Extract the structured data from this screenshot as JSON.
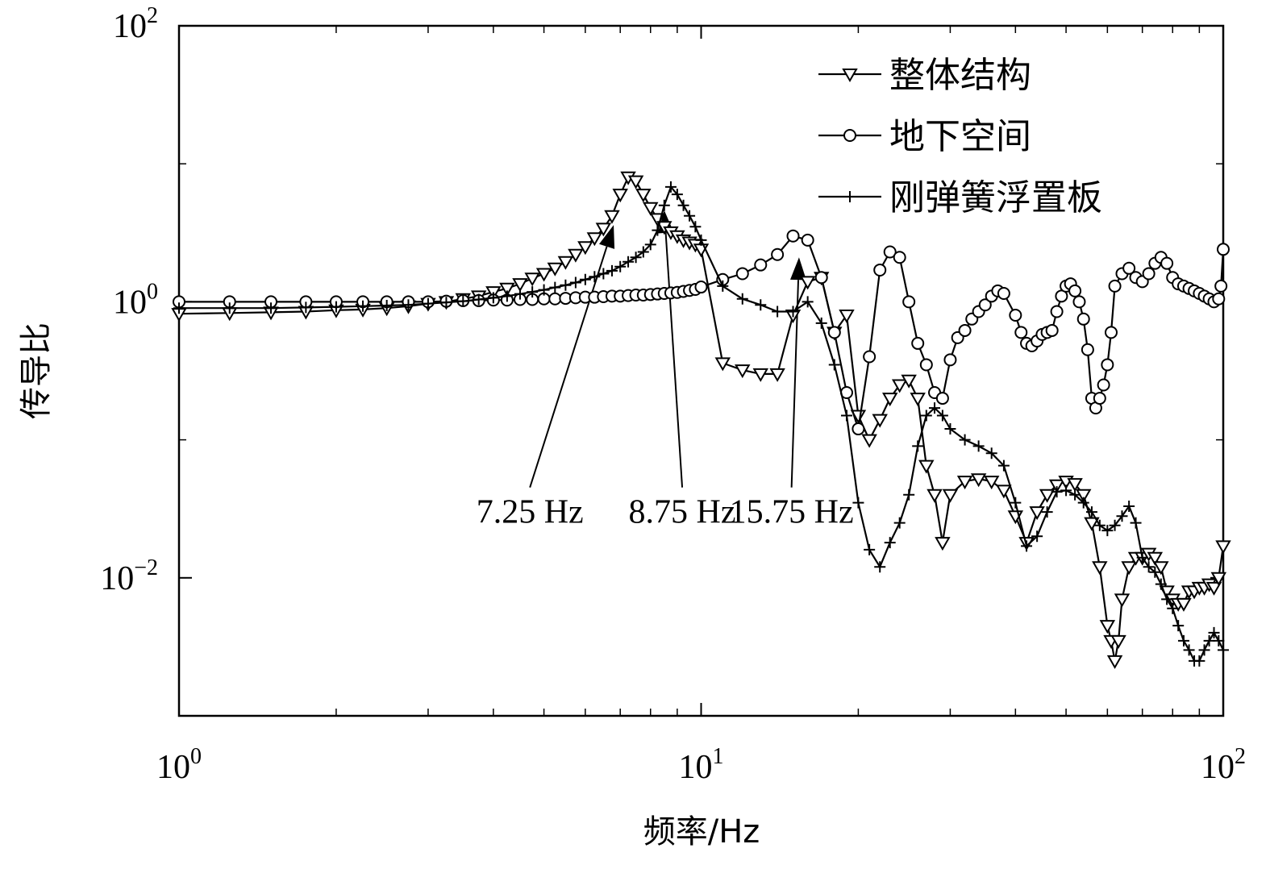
{
  "chart_data": {
    "type": "line",
    "title": "",
    "xlabel": "频率/Hz",
    "ylabel": "传导比",
    "xscale": "log",
    "yscale": "log",
    "xlim": [
      1,
      100
    ],
    "ylim": [
      0.001,
      100
    ],
    "x_ticks": [
      {
        "value": 1,
        "base": "10",
        "exp": "0"
      },
      {
        "value": 10,
        "base": "10",
        "exp": "1"
      },
      {
        "value": 100,
        "base": "10",
        "exp": "2"
      }
    ],
    "y_ticks": [
      {
        "value": 0.01,
        "base": "10",
        "exp": "−2"
      },
      {
        "value": 1,
        "base": "10",
        "exp": "0"
      },
      {
        "value": 100,
        "base": "10",
        "exp": "2"
      }
    ],
    "grid": false,
    "legend_position": "top-right",
    "colors": {
      "line": "#000000",
      "background": "#ffffff"
    },
    "series": [
      {
        "name": "整体结构",
        "marker": "triangle-down",
        "points": [
          [
            1.0,
            0.82
          ],
          [
            1.25,
            0.83
          ],
          [
            1.5,
            0.84
          ],
          [
            1.75,
            0.85
          ],
          [
            2.0,
            0.87
          ],
          [
            2.25,
            0.88
          ],
          [
            2.5,
            0.9
          ],
          [
            2.75,
            0.93
          ],
          [
            3.0,
            0.97
          ],
          [
            3.25,
            1.0
          ],
          [
            3.5,
            1.05
          ],
          [
            3.75,
            1.1
          ],
          [
            4.0,
            1.18
          ],
          [
            4.25,
            1.25
          ],
          [
            4.5,
            1.35
          ],
          [
            4.75,
            1.48
          ],
          [
            5.0,
            1.6
          ],
          [
            5.25,
            1.75
          ],
          [
            5.5,
            1.95
          ],
          [
            5.75,
            2.2
          ],
          [
            6.0,
            2.5
          ],
          [
            6.25,
            2.9
          ],
          [
            6.5,
            3.4
          ],
          [
            6.75,
            4.2
          ],
          [
            7.0,
            6.0
          ],
          [
            7.25,
            8.0
          ],
          [
            7.5,
            7.5
          ],
          [
            7.75,
            6.0
          ],
          [
            8.0,
            4.8
          ],
          [
            8.25,
            4.0
          ],
          [
            8.5,
            3.5
          ],
          [
            8.75,
            3.2
          ],
          [
            9.0,
            3.0
          ],
          [
            9.25,
            2.8
          ],
          [
            9.5,
            2.7
          ],
          [
            9.75,
            2.6
          ],
          [
            10.0,
            2.4
          ],
          [
            11.0,
            0.36
          ],
          [
            12.0,
            0.32
          ],
          [
            13.0,
            0.3
          ],
          [
            14.0,
            0.3
          ],
          [
            15.0,
            0.8
          ],
          [
            16.0,
            1.4
          ],
          [
            17.0,
            1.5
          ],
          [
            18.0,
            0.6
          ],
          [
            19.0,
            0.8
          ],
          [
            20.0,
            0.15
          ],
          [
            21.0,
            0.1
          ],
          [
            22.0,
            0.14
          ],
          [
            23.0,
            0.2
          ],
          [
            24.0,
            0.25
          ],
          [
            25.0,
            0.27
          ],
          [
            26.0,
            0.2
          ],
          [
            27.0,
            0.065
          ],
          [
            28.0,
            0.04
          ],
          [
            29.0,
            0.018
          ],
          [
            30.0,
            0.04
          ],
          [
            32.0,
            0.05
          ],
          [
            34.0,
            0.052
          ],
          [
            36.0,
            0.05
          ],
          [
            38.0,
            0.043
          ],
          [
            40.0,
            0.028
          ],
          [
            42.0,
            0.018
          ],
          [
            44.0,
            0.03
          ],
          [
            46.0,
            0.04
          ],
          [
            48.0,
            0.047
          ],
          [
            50.0,
            0.05
          ],
          [
            52.0,
            0.048
          ],
          [
            54.0,
            0.04
          ],
          [
            56.0,
            0.025
          ],
          [
            58.0,
            0.012
          ],
          [
            60.0,
            0.0045
          ],
          [
            61.0,
            0.0035
          ],
          [
            62.0,
            0.0025
          ],
          [
            63.0,
            0.0035
          ],
          [
            64.0,
            0.007
          ],
          [
            66.0,
            0.012
          ],
          [
            68.0,
            0.014
          ],
          [
            70.0,
            0.014
          ],
          [
            72.0,
            0.015
          ],
          [
            74.0,
            0.014
          ],
          [
            76.0,
            0.012
          ],
          [
            78.0,
            0.008
          ],
          [
            80.0,
            0.007
          ],
          [
            82.0,
            0.0065
          ],
          [
            84.0,
            0.0065
          ],
          [
            86.0,
            0.008
          ],
          [
            88.0,
            0.008
          ],
          [
            90.0,
            0.0085
          ],
          [
            92.0,
            0.0085
          ],
          [
            94.0,
            0.009
          ],
          [
            96.0,
            0.0085
          ],
          [
            98.0,
            0.01
          ],
          [
            100.0,
            0.017
          ]
        ]
      },
      {
        "name": "地下空间",
        "marker": "circle",
        "points": [
          [
            1.0,
            1.0
          ],
          [
            1.25,
            1.0
          ],
          [
            1.5,
            1.0
          ],
          [
            1.75,
            1.0
          ],
          [
            2.0,
            1.0
          ],
          [
            2.25,
            1.0
          ],
          [
            2.5,
            1.0
          ],
          [
            2.75,
            1.0
          ],
          [
            3.0,
            1.0
          ],
          [
            3.25,
            1.01
          ],
          [
            3.5,
            1.02
          ],
          [
            3.75,
            1.02
          ],
          [
            4.0,
            1.03
          ],
          [
            4.25,
            1.03
          ],
          [
            4.5,
            1.04
          ],
          [
            4.75,
            1.04
          ],
          [
            5.0,
            1.05
          ],
          [
            5.25,
            1.05
          ],
          [
            5.5,
            1.06
          ],
          [
            5.75,
            1.07
          ],
          [
            6.0,
            1.08
          ],
          [
            6.25,
            1.08
          ],
          [
            6.5,
            1.09
          ],
          [
            6.75,
            1.1
          ],
          [
            7.0,
            1.1
          ],
          [
            7.25,
            1.11
          ],
          [
            7.5,
            1.12
          ],
          [
            7.75,
            1.12
          ],
          [
            8.0,
            1.13
          ],
          [
            8.25,
            1.14
          ],
          [
            8.5,
            1.15
          ],
          [
            8.75,
            1.16
          ],
          [
            9.0,
            1.17
          ],
          [
            9.25,
            1.19
          ],
          [
            9.5,
            1.21
          ],
          [
            9.75,
            1.23
          ],
          [
            10.0,
            1.28
          ],
          [
            11.0,
            1.45
          ],
          [
            12.0,
            1.6
          ],
          [
            13.0,
            1.85
          ],
          [
            14.0,
            2.2
          ],
          [
            15.0,
            3.0
          ],
          [
            16.0,
            2.8
          ],
          [
            17.0,
            1.5
          ],
          [
            18.0,
            0.6
          ],
          [
            19.0,
            0.22
          ],
          [
            20.0,
            0.12
          ],
          [
            21.0,
            0.4
          ],
          [
            22.0,
            1.7
          ],
          [
            23.0,
            2.3
          ],
          [
            24.0,
            2.1
          ],
          [
            25.0,
            1.0
          ],
          [
            26.0,
            0.5
          ],
          [
            27.0,
            0.35
          ],
          [
            28.0,
            0.22
          ],
          [
            29.0,
            0.2
          ],
          [
            30.0,
            0.38
          ],
          [
            31.0,
            0.55
          ],
          [
            32.0,
            0.62
          ],
          [
            33.0,
            0.75
          ],
          [
            34.0,
            0.85
          ],
          [
            35.0,
            0.95
          ],
          [
            36.0,
            1.1
          ],
          [
            37.0,
            1.2
          ],
          [
            38.0,
            1.15
          ],
          [
            40.0,
            0.8
          ],
          [
            41.0,
            0.6
          ],
          [
            42.0,
            0.5
          ],
          [
            43.0,
            0.48
          ],
          [
            44.0,
            0.52
          ],
          [
            45.0,
            0.58
          ],
          [
            46.0,
            0.6
          ],
          [
            47.0,
            0.62
          ],
          [
            48.0,
            0.85
          ],
          [
            49.0,
            1.1
          ],
          [
            50.0,
            1.3
          ],
          [
            51.0,
            1.35
          ],
          [
            52.0,
            1.2
          ],
          [
            53.0,
            1.0
          ],
          [
            54.0,
            0.75
          ],
          [
            55.0,
            0.45
          ],
          [
            56.0,
            0.2
          ],
          [
            57.0,
            0.17
          ],
          [
            58.0,
            0.2
          ],
          [
            59.0,
            0.25
          ],
          [
            60.0,
            0.35
          ],
          [
            61.0,
            0.6
          ],
          [
            62.0,
            1.3
          ],
          [
            64.0,
            1.6
          ],
          [
            66.0,
            1.75
          ],
          [
            68.0,
            1.5
          ],
          [
            70.0,
            1.4
          ],
          [
            72.0,
            1.6
          ],
          [
            74.0,
            1.9
          ],
          [
            76.0,
            2.1
          ],
          [
            78.0,
            1.9
          ],
          [
            80.0,
            1.5
          ],
          [
            82.0,
            1.35
          ],
          [
            84.0,
            1.3
          ],
          [
            86.0,
            1.25
          ],
          [
            88.0,
            1.2
          ],
          [
            90.0,
            1.15
          ],
          [
            92.0,
            1.1
          ],
          [
            94.0,
            1.05
          ],
          [
            96.0,
            1.0
          ],
          [
            98.0,
            1.05
          ],
          [
            99.0,
            1.3
          ],
          [
            100.0,
            2.4
          ]
        ]
      },
      {
        "name": "刚弹簧浮置板",
        "marker": "plus",
        "points": [
          [
            1.0,
            0.9
          ],
          [
            1.25,
            0.9
          ],
          [
            1.5,
            0.9
          ],
          [
            1.75,
            0.91
          ],
          [
            2.0,
            0.92
          ],
          [
            2.25,
            0.93
          ],
          [
            2.5,
            0.94
          ],
          [
            2.75,
            0.95
          ],
          [
            3.0,
            0.97
          ],
          [
            3.25,
            0.99
          ],
          [
            3.5,
            1.01
          ],
          [
            3.75,
            1.04
          ],
          [
            4.0,
            1.07
          ],
          [
            4.25,
            1.1
          ],
          [
            4.5,
            1.14
          ],
          [
            4.75,
            1.18
          ],
          [
            5.0,
            1.22
          ],
          [
            5.25,
            1.27
          ],
          [
            5.5,
            1.32
          ],
          [
            5.75,
            1.38
          ],
          [
            6.0,
            1.45
          ],
          [
            6.25,
            1.52
          ],
          [
            6.5,
            1.6
          ],
          [
            6.75,
            1.68
          ],
          [
            7.0,
            1.8
          ],
          [
            7.25,
            1.95
          ],
          [
            7.5,
            2.1
          ],
          [
            7.75,
            2.3
          ],
          [
            8.0,
            2.6
          ],
          [
            8.25,
            3.3
          ],
          [
            8.5,
            5.0
          ],
          [
            8.75,
            6.8
          ],
          [
            9.0,
            6.0
          ],
          [
            9.25,
            5.0
          ],
          [
            9.5,
            4.2
          ],
          [
            9.75,
            3.5
          ],
          [
            10.0,
            2.8
          ],
          [
            11.0,
            1.3
          ],
          [
            12.0,
            1.05
          ],
          [
            13.0,
            0.95
          ],
          [
            14.0,
            0.85
          ],
          [
            15.0,
            0.85
          ],
          [
            16.0,
            1.0
          ],
          [
            17.0,
            0.7
          ],
          [
            18.0,
            0.35
          ],
          [
            19.0,
            0.15
          ],
          [
            20.0,
            0.035
          ],
          [
            21.0,
            0.016
          ],
          [
            22.0,
            0.012
          ],
          [
            23.0,
            0.018
          ],
          [
            24.0,
            0.025
          ],
          [
            25.0,
            0.04
          ],
          [
            26.0,
            0.09
          ],
          [
            27.0,
            0.15
          ],
          [
            28.0,
            0.17
          ],
          [
            29.0,
            0.15
          ],
          [
            30.0,
            0.12
          ],
          [
            32.0,
            0.1
          ],
          [
            34.0,
            0.09
          ],
          [
            36.0,
            0.08
          ],
          [
            38.0,
            0.065
          ],
          [
            40.0,
            0.035
          ],
          [
            42.0,
            0.017
          ],
          [
            44.0,
            0.02
          ],
          [
            46.0,
            0.03
          ],
          [
            48.0,
            0.042
          ],
          [
            50.0,
            0.043
          ],
          [
            52.0,
            0.04
          ],
          [
            54.0,
            0.035
          ],
          [
            56.0,
            0.03
          ],
          [
            58.0,
            0.024
          ],
          [
            60.0,
            0.022
          ],
          [
            62.0,
            0.024
          ],
          [
            64.0,
            0.028
          ],
          [
            66.0,
            0.033
          ],
          [
            68.0,
            0.025
          ],
          [
            70.0,
            0.014
          ],
          [
            72.0,
            0.012
          ],
          [
            74.0,
            0.011
          ],
          [
            76.0,
            0.009
          ],
          [
            78.0,
            0.007
          ],
          [
            80.0,
            0.006
          ],
          [
            82.0,
            0.0045
          ],
          [
            84.0,
            0.0035
          ],
          [
            86.0,
            0.003
          ],
          [
            88.0,
            0.0025
          ],
          [
            90.0,
            0.0025
          ],
          [
            92.0,
            0.003
          ],
          [
            94.0,
            0.0035
          ],
          [
            96.0,
            0.004
          ],
          [
            98.0,
            0.0035
          ],
          [
            100.0,
            0.003
          ]
        ]
      }
    ],
    "annotations": [
      {
        "text": "7.25 Hz",
        "arrow_target": [
          6.8,
          3.6
        ],
        "label_at": [
          4.7,
          0.025
        ]
      },
      {
        "text": "8.75 Hz",
        "arrow_target": [
          8.5,
          4.6
        ],
        "label_at": [
          9.2,
          0.025
        ]
      },
      {
        "text": "15.75 Hz",
        "arrow_target": [
          15.4,
          2.1
        ],
        "label_at": [
          14.9,
          0.025
        ]
      }
    ]
  }
}
